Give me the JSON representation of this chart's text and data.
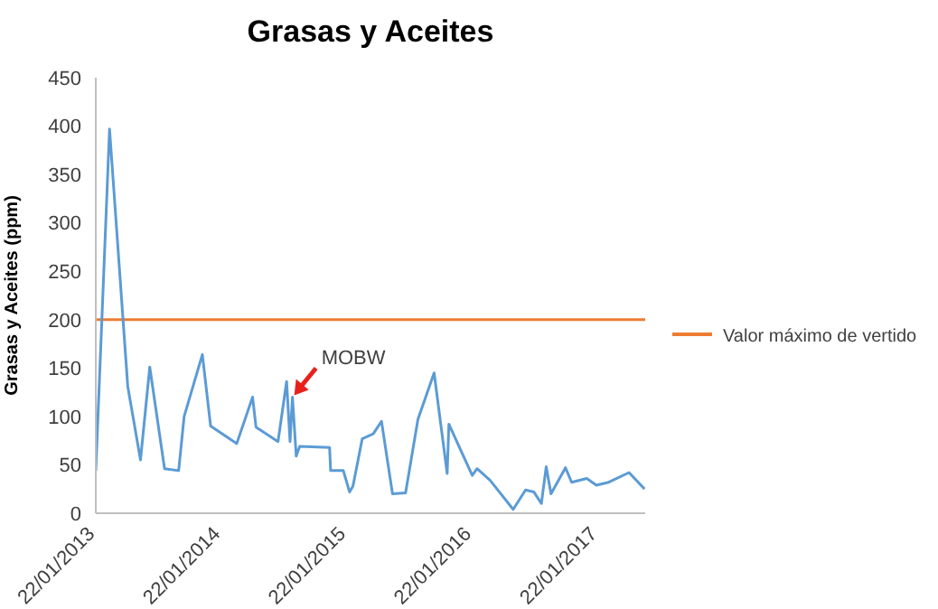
{
  "chart_data": {
    "type": "line",
    "title": "Grasas y Aceites",
    "ylabel": "Grasas y Aceites (ppm)",
    "x": [
      "2013-01-22",
      "2013-03-03",
      "2013-04-25",
      "2013-06-01",
      "2013-06-28",
      "2013-08-10",
      "2013-09-20",
      "2013-10-06",
      "2013-11-28",
      "2013-12-22",
      "2014-03-08",
      "2014-04-23",
      "2014-05-03",
      "2014-07-06",
      "2014-07-31",
      "2014-08-10",
      "2014-08-17",
      "2014-08-28",
      "2014-09-07",
      "2014-12-03",
      "2014-12-06",
      "2015-01-12",
      "2015-01-30",
      "2015-02-09",
      "2015-03-08",
      "2015-04-09",
      "2015-05-03",
      "2015-06-04",
      "2015-07-12",
      "2015-08-17",
      "2015-10-03",
      "2015-11-10",
      "2015-11-15",
      "2016-01-22",
      "2016-02-05",
      "2016-03-14",
      "2016-05-20",
      "2016-06-25",
      "2016-07-19",
      "2016-08-10",
      "2016-08-24",
      "2016-09-07",
      "2016-10-19",
      "2016-11-06",
      "2016-12-20",
      "2017-01-17",
      "2017-02-22",
      "2017-04-22",
      "2017-06-06"
    ],
    "series": [
      {
        "color": "#5b9bd5",
        "values": [
          44,
          397,
          131,
          55,
          151,
          46,
          44,
          100,
          164,
          90,
          72,
          120,
          89,
          74,
          136,
          74,
          120,
          59,
          69,
          68,
          44,
          44,
          22,
          28,
          77,
          82,
          95,
          20,
          21,
          97,
          145,
          41,
          92,
          39,
          46,
          34,
          4,
          24,
          22,
          10,
          48,
          20,
          47,
          32,
          36,
          29,
          32,
          42,
          25
        ]
      }
    ],
    "xlim": [
      "2013-01-22",
      "2017-06-08"
    ],
    "xticks": [
      {
        "value": "2013-01-22",
        "label": "22/01/2013"
      },
      {
        "value": "2014-01-22",
        "label": "22/01/2014"
      },
      {
        "value": "2015-01-22",
        "label": "22/01/2015"
      },
      {
        "value": "2016-01-22",
        "label": "22/01/2016"
      },
      {
        "value": "2017-01-22",
        "label": "22/01/2017"
      }
    ],
    "ylim": [
      0,
      450
    ],
    "yticks": [
      0,
      50,
      100,
      150,
      200,
      250,
      300,
      350,
      400,
      450
    ],
    "ref_lines": [
      {
        "axis": "y",
        "value": 200,
        "label": "Valor máximo de vertido",
        "color": "#ed7d31"
      }
    ],
    "annotations": [
      {
        "text": "MOBW",
        "x": "2014-08-17",
        "y": 120
      }
    ],
    "legend": "right",
    "marker": "none",
    "line_style": "solid"
  }
}
